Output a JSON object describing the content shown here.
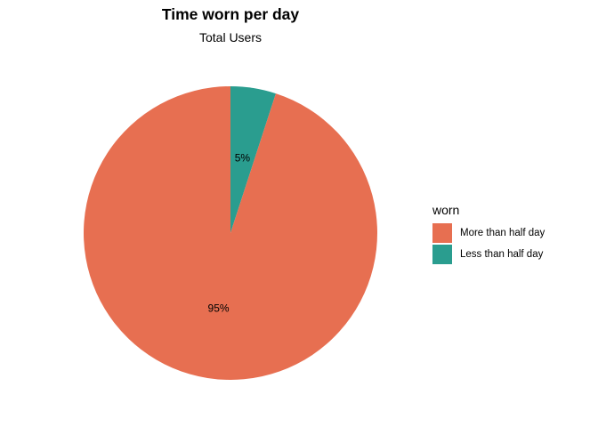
{
  "chart_data": {
    "type": "pie",
    "title": "Time worn per day",
    "subtitle": "Total Users",
    "legend_title": "worn",
    "legend_position": "right",
    "slices": [
      {
        "label": "More than half day",
        "value": 95,
        "display": "95%",
        "color": "#E76F51"
      },
      {
        "label": "Less than half day",
        "value": 5,
        "display": "5%",
        "color": "#2A9D8F"
      }
    ]
  }
}
